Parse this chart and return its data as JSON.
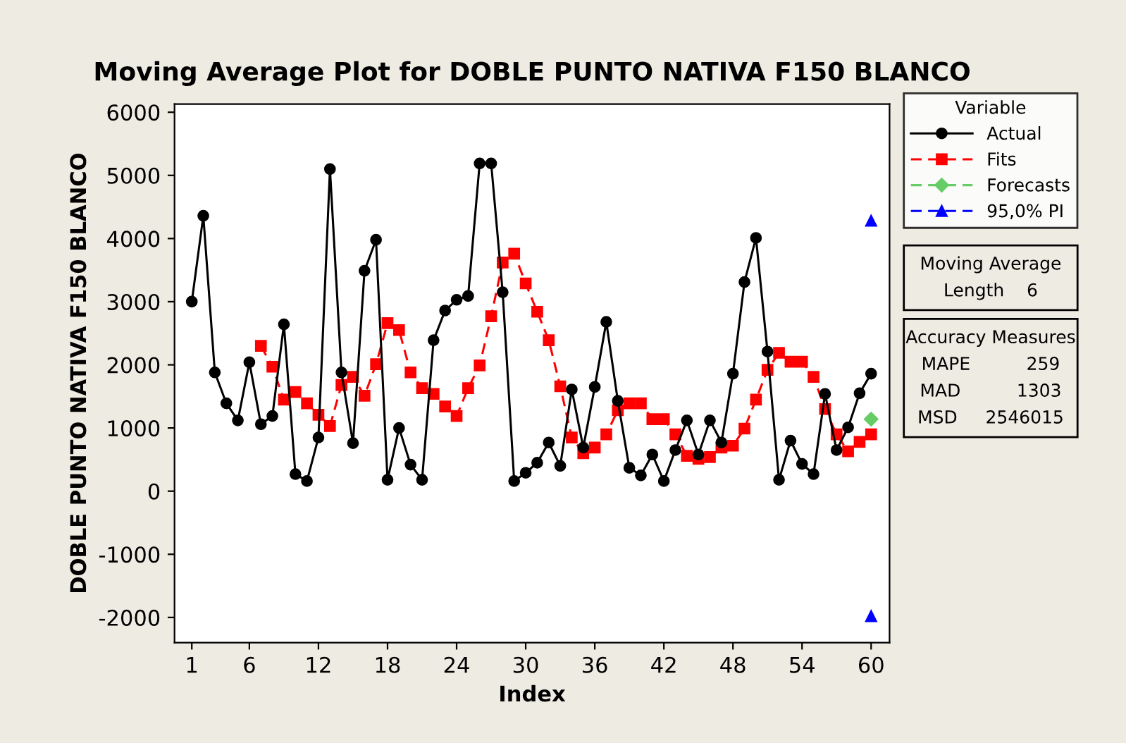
{
  "chart_data": {
    "type": "line",
    "title": "Moving Average Plot for DOBLE PUNTO NATIVA F150 BLANCO",
    "xlabel": "Index",
    "ylabel": "DOBLE PUNTO NATIVA F150 BLANCO",
    "legend_title": "Variable",
    "legend": "right",
    "grid": false,
    "xlim": [
      -0.5,
      61.6
    ],
    "xticks": [
      1,
      6,
      12,
      18,
      24,
      30,
      36,
      42,
      48,
      54,
      60
    ],
    "ylim": [
      -2400,
      6130
    ],
    "yticks": [
      -2000,
      -1000,
      0,
      1000,
      2000,
      3000,
      4000,
      5000,
      6000
    ],
    "series": [
      {
        "name": "Actual",
        "color": "#000000",
        "marker": "circle",
        "line_style": "solid",
        "x": [
          1,
          2,
          3,
          4,
          5,
          6,
          7,
          8,
          9,
          10,
          11,
          12,
          13,
          14,
          15,
          16,
          17,
          18,
          19,
          20,
          21,
          22,
          23,
          24,
          25,
          26,
          27,
          28,
          29,
          30,
          31,
          32,
          33,
          34,
          35,
          36,
          37,
          38,
          39,
          40,
          41,
          42,
          43,
          44,
          45,
          46,
          47,
          48,
          49,
          50,
          51,
          52,
          53,
          54,
          55,
          56,
          57,
          58,
          59,
          60
        ],
        "values": [
          3000,
          4360,
          1880,
          1390,
          1120,
          2040,
          1060,
          1190,
          2640,
          270,
          160,
          850,
          5100,
          1880,
          760,
          3490,
          3980,
          180,
          1000,
          420,
          180,
          2390,
          2860,
          3030,
          3090,
          5190,
          5190,
          3150,
          160,
          290,
          450,
          770,
          400,
          1610,
          690,
          1650,
          2680,
          1430,
          370,
          250,
          580,
          160,
          650,
          1120,
          580,
          1120,
          770,
          1860,
          3310,
          4010,
          2210,
          180,
          800,
          430,
          270,
          1540,
          650,
          1010,
          1550,
          1860
        ]
      },
      {
        "name": "Fits",
        "color": "#ff0000",
        "marker": "square",
        "line_style": "dashed",
        "x": [
          7,
          8,
          9,
          10,
          11,
          12,
          13,
          14,
          15,
          16,
          17,
          18,
          19,
          20,
          21,
          22,
          23,
          24,
          25,
          26,
          27,
          28,
          29,
          30,
          31,
          32,
          33,
          34,
          35,
          36,
          37,
          38,
          39,
          40,
          41,
          42,
          43,
          44,
          45,
          46,
          47,
          48,
          49,
          50,
          51,
          52,
          53,
          54,
          55,
          56,
          57,
          58,
          59,
          60
        ],
        "values": [
          2300,
          1970,
          1450,
          1570,
          1390,
          1210,
          1030,
          1680,
          1810,
          1510,
          2010,
          2660,
          2550,
          1880,
          1630,
          1540,
          1340,
          1190,
          1630,
          1990,
          2770,
          3620,
          3760,
          3290,
          2840,
          2390,
          1660,
          850,
          600,
          690,
          900,
          1280,
          1390,
          1390,
          1140,
          1140,
          900,
          560,
          510,
          540,
          690,
          720,
          990,
          1450,
          1920,
          2190,
          2050,
          2050,
          1810,
          1300,
          900,
          630,
          780,
          900
        ]
      },
      {
        "name": "Forecasts",
        "color": "#66cc66",
        "marker": "diamond",
        "line_style": "dashed",
        "x": [
          60
        ],
        "values": [
          1140
        ]
      },
      {
        "name": "95,0% PI",
        "color": "#0000ff",
        "marker": "triangle",
        "line_style": "dashed",
        "x": [
          60,
          60
        ],
        "values": [
          4280,
          -1980
        ],
        "type": "scatter"
      }
    ],
    "annotations": [
      "Moving Average",
      "Length    6",
      "Accuracy Measures",
      "MAPE          259",
      "MAD          1303",
      "MSD     2546015"
    ]
  }
}
